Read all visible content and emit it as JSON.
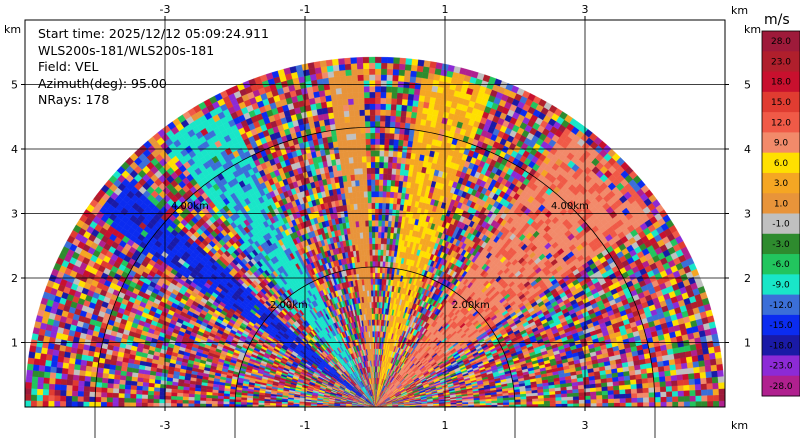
{
  "info": {
    "start_time": "Start time: 2025/12/12 05:09:24.911",
    "instrument": "WLS200s-181/WLS200s-181",
    "field": "Field: VEL",
    "azimuth": "Azimuth(deg): 95.00",
    "nrays": "NRays: 178"
  },
  "axes": {
    "unit": "km",
    "x_ticks": [
      "-3",
      "-1",
      "1",
      "3"
    ],
    "y_ticks": [
      "1",
      "2",
      "3",
      "4",
      "5"
    ]
  },
  "range_rings": {
    "labels": [
      "2.00km",
      "4.00km"
    ]
  },
  "colorbar": {
    "unit": "m/s",
    "labels": [
      "28.0",
      "23.0",
      "18.0",
      "15.0",
      "12.0",
      "9.0",
      "6.0",
      "3.0",
      "1.0",
      "-1.0",
      "-3.0",
      "-6.0",
      "-9.0",
      "-12.0",
      "-15.0",
      "-18.0",
      "-23.0",
      "-28.0"
    ],
    "colors": [
      "#9e1a3a",
      "#b01f2c",
      "#c8102e",
      "#e03c31",
      "#f05a47",
      "#f28a6a",
      "#ffe000",
      "#f5a623",
      "#e8943a",
      "#c0c0c0",
      "#2e8b2e",
      "#22c55e",
      "#19e6c8",
      "#3b6fd8",
      "#0b2cf0",
      "#1a1aa6",
      "#8c2ad6",
      "#b0208f"
    ]
  },
  "chart_data": {
    "type": "heatmap",
    "title": "",
    "field": "VEL",
    "units": "m/s",
    "scan_type": "RHI",
    "azimuth_deg": 95.0,
    "n_rays": 178,
    "xlim": [
      -5,
      5
    ],
    "ylim": [
      0,
      6
    ],
    "x_label": "km",
    "y_label": "km",
    "max_range_km": 5.0,
    "range_rings_km": [
      2.0,
      4.0
    ],
    "color_limits": [
      -28.0,
      28.0
    ],
    "features": [
      {
        "elevation_range_deg": [
          138,
          146
        ],
        "velocity_ms": -18.0
      },
      {
        "elevation_range_deg": [
          116,
          128
        ],
        "velocity_ms": -12.0
      },
      {
        "elevation_range_deg": [
          92,
          98
        ],
        "velocity_ms": 1.0
      },
      {
        "elevation_range_deg": [
          70,
          82
        ],
        "velocity_ms": 6.0
      },
      {
        "elevation_range_deg": [
          34,
          56
        ],
        "velocity_ms": 12.0
      }
    ]
  }
}
